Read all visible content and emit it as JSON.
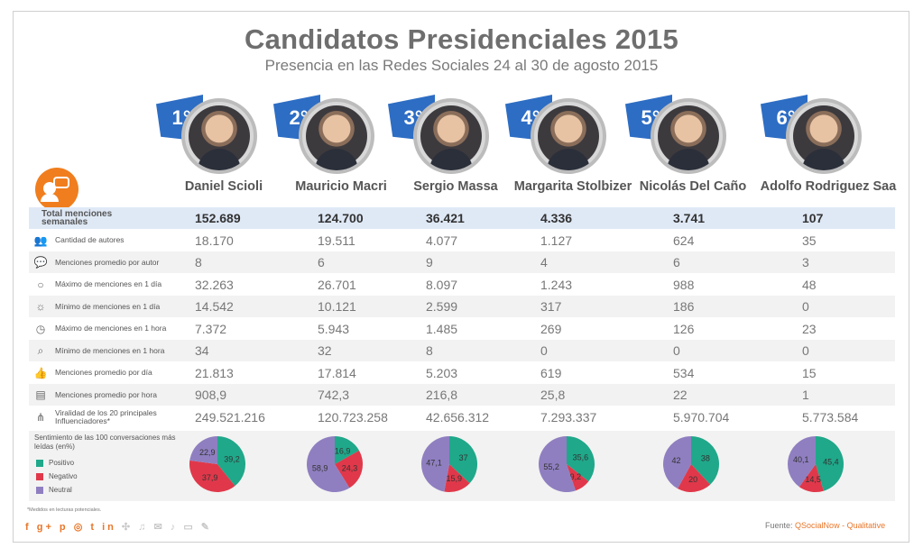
{
  "header": {
    "title": "Candidatos Presidenciales 2015",
    "subtitle": "Presencia en las Redes Sociales 24 al 30 de agosto 2015"
  },
  "candidates": [
    {
      "rank": "1°",
      "name": "Daniel Scioli"
    },
    {
      "rank": "2°",
      "name": "Mauricio Macri"
    },
    {
      "rank": "3°",
      "name": "Sergio Massa"
    },
    {
      "rank": "4°",
      "name": "Margarita Stolbizer"
    },
    {
      "rank": "5°",
      "name": "Nicolás Del Caño"
    },
    {
      "rank": "6°",
      "name": "Adolfo Rodriguez Saa"
    }
  ],
  "chart_data": [
    {
      "type": "table",
      "columns": [
        "Daniel Scioli",
        "Mauricio Macri",
        "Sergio Massa",
        "Margarita Stolbizer",
        "Nicolás Del Caño",
        "Adolfo Rodriguez Saa"
      ],
      "rows": [
        {
          "label": "Total menciones semanales",
          "icon": "",
          "values": [
            "152.689",
            "124.700",
            "36.421",
            "4.336",
            "3.741",
            "107"
          ]
        },
        {
          "label": "Cantidad de autores",
          "icon": "people-icon",
          "values": [
            "18.170",
            "19.511",
            "4.077",
            "1.127",
            "624",
            "35"
          ]
        },
        {
          "label": "Menciones promedio por autor",
          "icon": "chat-bubbles-icon",
          "values": [
            "8",
            "6",
            "9",
            "4",
            "6",
            "3"
          ]
        },
        {
          "label": "Máximo de menciones en 1 día",
          "icon": "speech-bubble-icon",
          "values": [
            "32.263",
            "26.701",
            "8.097",
            "1.243",
            "988",
            "48"
          ]
        },
        {
          "label": "Mínimo de menciones en 1 día",
          "icon": "sun-icon",
          "values": [
            "14.542",
            "10.121",
            "2.599",
            "317",
            "186",
            "0"
          ]
        },
        {
          "label": "Máximo de menciones en 1 hora",
          "icon": "clock-icon",
          "values": [
            "7.372",
            "5.943",
            "1.485",
            "269",
            "126",
            "23"
          ]
        },
        {
          "label": "Mínimo de menciones en 1 hora",
          "icon": "magnifier-clock-icon",
          "values": [
            "34",
            "32",
            "8",
            "0",
            "0",
            "0"
          ]
        },
        {
          "label": "Menciones promedio por día",
          "icon": "thumbs-up-icon",
          "values": [
            "21.813",
            "17.814",
            "5.203",
            "619",
            "534",
            "15"
          ]
        },
        {
          "label": "Menciones promedio por hora",
          "icon": "newspaper-icon",
          "values": [
            "908,9",
            "742,3",
            "216,8",
            "25,8",
            "22",
            "1"
          ]
        },
        {
          "label": "Viralidad de los 20 principales Influenciadores*",
          "icon": "share-icon",
          "values": [
            "249.521.216",
            "120.723.258",
            "42.656.312",
            "7.293.337",
            "5.970.704",
            "5.773.584"
          ]
        }
      ]
    },
    {
      "type": "pie",
      "title": "Sentimiento de las 100 conversaciones más leídas (en%)",
      "legend": [
        {
          "name": "Positivo",
          "color": "#1fa88a"
        },
        {
          "name": "Negativo",
          "color": "#e0384a"
        },
        {
          "name": "Neutral",
          "color": "#8f7fc0"
        }
      ],
      "pies": [
        {
          "candidate": "Daniel Scioli",
          "positivo": 39.2,
          "negativo": 37.9,
          "neutral": 22.9,
          "labels": [
            "39,2",
            "37,9",
            "22,9"
          ]
        },
        {
          "candidate": "Mauricio Macri",
          "positivo": 16.9,
          "negativo": 24.3,
          "neutral": 58.9,
          "labels": [
            "16,9",
            "24,3",
            "58,9"
          ]
        },
        {
          "candidate": "Sergio Massa",
          "positivo": 37,
          "negativo": 15.9,
          "neutral": 47.1,
          "labels": [
            "37",
            "15,9",
            "47,1"
          ]
        },
        {
          "candidate": "Margarita Stolbizer",
          "positivo": 35.6,
          "negativo": 9.2,
          "neutral": 55.2,
          "labels": [
            "35,6",
            "9,2",
            "55,2"
          ]
        },
        {
          "candidate": "Nicolás Del Caño",
          "positivo": 38,
          "negativo": 20,
          "neutral": 42,
          "labels": [
            "38",
            "20",
            "42"
          ]
        },
        {
          "candidate": "Adolfo Rodriguez Saa",
          "positivo": 45.4,
          "negativo": 14.5,
          "neutral": 40.1,
          "labels": [
            "45,4",
            "14,5",
            "40,1"
          ]
        }
      ]
    }
  ],
  "footer": {
    "note": "*Medidos en lecturas potenciales.",
    "social_icons": "f g+ p ◎ t in",
    "social_icons_grey": "✣ ♫ ✉ ♪ ▭ ✎",
    "source_label": "Fuente:",
    "source_name": "QSocialNow - Qualitative"
  },
  "colors": {
    "rank_badge": "#2d6dc4",
    "accent": "#f07e1e",
    "total_row": "#dfe9f6"
  }
}
